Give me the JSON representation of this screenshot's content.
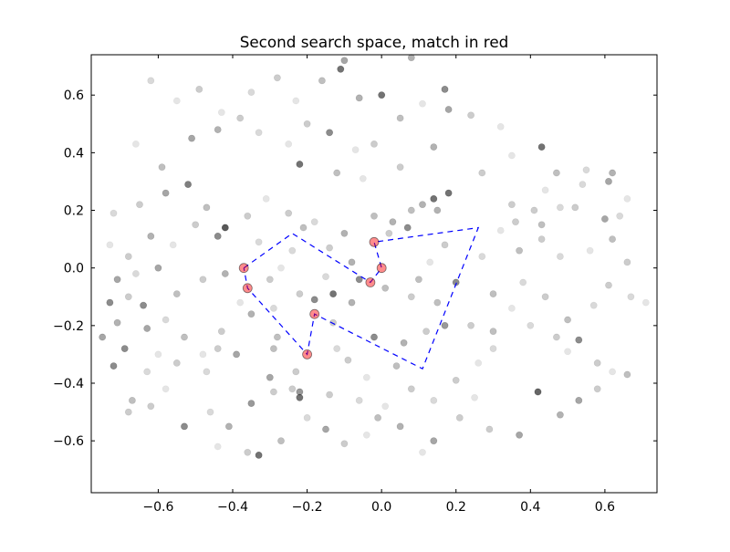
{
  "chart_data": {
    "type": "scatter",
    "title": "Second search space, match in red",
    "xlabel": "",
    "ylabel": "",
    "xlim": [
      -0.78,
      0.74
    ],
    "ylim": [
      -0.78,
      0.74
    ],
    "xticks": [
      -0.6,
      -0.4,
      -0.2,
      0.0,
      0.2,
      0.4,
      0.6
    ],
    "yticks": [
      -0.6,
      -0.4,
      -0.2,
      0.0,
      0.2,
      0.4,
      0.6
    ],
    "xtick_labels": [
      "−0.6",
      "−0.4",
      "−0.2",
      "0.0",
      "0.2",
      "0.4",
      "0.6"
    ],
    "ytick_labels": [
      "−0.6",
      "−0.4",
      "−0.2",
      "0.0",
      "0.2",
      "0.4",
      "0.6"
    ],
    "grid": false,
    "colors": {
      "background_points": "#000000",
      "match_points": "#ff0000",
      "polygon_line": "#0000ff"
    },
    "background_points": [
      [
        -0.62,
        0.65,
        0.15
      ],
      [
        -0.55,
        0.58,
        0.1
      ],
      [
        -0.49,
        0.62,
        0.2
      ],
      [
        -0.43,
        0.54,
        0.1
      ],
      [
        -0.35,
        0.61,
        0.15
      ],
      [
        -0.28,
        0.66,
        0.2
      ],
      [
        -0.23,
        0.58,
        0.1
      ],
      [
        -0.16,
        0.65,
        0.25
      ],
      [
        -0.1,
        0.72,
        0.35
      ],
      [
        -0.06,
        0.59,
        0.3
      ],
      [
        0.0,
        0.6,
        0.55
      ],
      [
        0.05,
        0.52,
        0.25
      ],
      [
        0.11,
        0.57,
        0.1
      ],
      [
        0.17,
        0.62,
        0.45
      ],
      [
        0.24,
        0.53,
        0.2
      ],
      [
        0.32,
        0.49,
        0.1
      ],
      [
        -0.11,
        0.69,
        0.55
      ],
      [
        0.08,
        0.73,
        0.3
      ],
      [
        0.18,
        0.55,
        0.35
      ],
      [
        -0.02,
        0.43,
        0.2
      ],
      [
        -0.66,
        0.43,
        0.1
      ],
      [
        -0.59,
        0.35,
        0.25
      ],
      [
        -0.51,
        0.45,
        0.35
      ],
      [
        -0.44,
        0.48,
        0.3
      ],
      [
        -0.38,
        0.52,
        0.2
      ],
      [
        -0.33,
        0.47,
        0.15
      ],
      [
        -0.25,
        0.43,
        0.1
      ],
      [
        -0.2,
        0.5,
        0.2
      ],
      [
        -0.14,
        0.47,
        0.45
      ],
      [
        -0.07,
        0.41,
        0.1
      ],
      [
        -0.22,
        0.36,
        0.55
      ],
      [
        -0.12,
        0.33,
        0.25
      ],
      [
        -0.05,
        0.31,
        0.1
      ],
      [
        0.05,
        0.35,
        0.2
      ],
      [
        0.14,
        0.42,
        0.3
      ],
      [
        0.27,
        0.33,
        0.2
      ],
      [
        0.35,
        0.39,
        0.1
      ],
      [
        0.43,
        0.42,
        0.55
      ],
      [
        0.47,
        0.33,
        0.25
      ],
      [
        0.54,
        0.29,
        0.15
      ],
      [
        0.62,
        0.33,
        0.3
      ],
      [
        0.66,
        0.24,
        0.1
      ],
      [
        0.6,
        0.17,
        0.35
      ],
      [
        0.52,
        0.21,
        0.2
      ],
      [
        0.44,
        0.27,
        0.1
      ],
      [
        -0.72,
        0.19,
        0.15
      ],
      [
        -0.65,
        0.22,
        0.2
      ],
      [
        -0.58,
        0.26,
        0.35
      ],
      [
        -0.52,
        0.29,
        0.5
      ],
      [
        -0.47,
        0.21,
        0.25
      ],
      [
        -0.42,
        0.14,
        0.65
      ],
      [
        -0.36,
        0.18,
        0.2
      ],
      [
        -0.31,
        0.24,
        0.1
      ],
      [
        -0.25,
        0.19,
        0.2
      ],
      [
        -0.18,
        0.16,
        0.15
      ],
      [
        -0.44,
        0.11,
        0.45
      ],
      [
        -0.5,
        0.15,
        0.2
      ],
      [
        -0.56,
        0.08,
        0.1
      ],
      [
        -0.62,
        0.11,
        0.3
      ],
      [
        -0.68,
        0.04,
        0.2
      ],
      [
        -0.73,
        0.08,
        0.1
      ],
      [
        -0.66,
        -0.02,
        0.15
      ],
      [
        -0.6,
        0.0,
        0.35
      ],
      [
        -0.55,
        -0.09,
        0.25
      ],
      [
        -0.48,
        -0.04,
        0.2
      ],
      [
        -0.42,
        -0.02,
        0.3
      ],
      [
        -0.38,
        -0.12,
        0.1
      ],
      [
        -0.71,
        -0.04,
        0.35
      ],
      [
        -0.73,
        -0.12,
        0.45
      ],
      [
        -0.68,
        -0.1,
        0.2
      ],
      [
        -0.64,
        -0.13,
        0.45
      ],
      [
        -0.71,
        -0.19,
        0.3
      ],
      [
        -0.75,
        -0.24,
        0.35
      ],
      [
        -0.69,
        -0.28,
        0.45
      ],
      [
        -0.63,
        -0.21,
        0.35
      ],
      [
        -0.58,
        -0.18,
        0.15
      ],
      [
        -0.53,
        -0.24,
        0.25
      ],
      [
        -0.48,
        -0.3,
        0.1
      ],
      [
        -0.43,
        -0.22,
        0.2
      ],
      [
        -0.39,
        -0.3,
        0.35
      ],
      [
        -0.72,
        -0.34,
        0.45
      ],
      [
        -0.67,
        -0.46,
        0.25
      ],
      [
        -0.62,
        -0.48,
        0.2
      ],
      [
        -0.68,
        -0.5,
        0.2
      ],
      [
        -0.58,
        -0.42,
        0.1
      ],
      [
        -0.53,
        -0.55,
        0.45
      ],
      [
        -0.46,
        -0.5,
        0.15
      ],
      [
        -0.41,
        -0.55,
        0.3
      ],
      [
        -0.35,
        -0.47,
        0.4
      ],
      [
        -0.29,
        -0.43,
        0.2
      ],
      [
        -0.44,
        -0.62,
        0.1
      ],
      [
        -0.36,
        -0.64,
        0.2
      ],
      [
        -0.33,
        -0.65,
        0.55
      ],
      [
        -0.27,
        -0.6,
        0.25
      ],
      [
        -0.2,
        -0.52,
        0.15
      ],
      [
        -0.15,
        -0.56,
        0.35
      ],
      [
        -0.1,
        -0.61,
        0.2
      ],
      [
        -0.04,
        -0.58,
        0.1
      ],
      [
        -0.01,
        -0.52,
        0.25
      ],
      [
        0.05,
        -0.55,
        0.3
      ],
      [
        0.11,
        -0.64,
        0.1
      ],
      [
        0.14,
        -0.6,
        0.35
      ],
      [
        0.21,
        -0.52,
        0.2
      ],
      [
        0.25,
        -0.45,
        0.1
      ],
      [
        0.29,
        -0.56,
        0.2
      ],
      [
        0.37,
        -0.58,
        0.35
      ],
      [
        0.42,
        -0.43,
        0.6
      ],
      [
        0.48,
        -0.51,
        0.3
      ],
      [
        0.53,
        -0.46,
        0.35
      ],
      [
        0.58,
        -0.42,
        0.2
      ],
      [
        0.62,
        -0.36,
        0.1
      ],
      [
        0.66,
        -0.37,
        0.25
      ],
      [
        0.58,
        -0.33,
        0.2
      ],
      [
        0.5,
        -0.29,
        0.1
      ],
      [
        0.47,
        -0.24,
        0.2
      ],
      [
        0.4,
        -0.2,
        0.15
      ],
      [
        0.35,
        -0.14,
        0.1
      ],
      [
        0.3,
        -0.09,
        0.25
      ],
      [
        0.38,
        -0.05,
        0.15
      ],
      [
        0.44,
        -0.1,
        0.2
      ],
      [
        0.5,
        -0.18,
        0.25
      ],
      [
        0.53,
        -0.25,
        0.45
      ],
      [
        0.57,
        -0.13,
        0.15
      ],
      [
        0.61,
        -0.06,
        0.2
      ],
      [
        0.67,
        -0.1,
        0.15
      ],
      [
        0.71,
        -0.12,
        0.1
      ],
      [
        0.66,
        0.02,
        0.2
      ],
      [
        0.62,
        0.1,
        0.25
      ],
      [
        0.56,
        0.06,
        0.1
      ],
      [
        0.48,
        0.04,
        0.15
      ],
      [
        0.43,
        0.1,
        0.2
      ],
      [
        0.37,
        0.06,
        0.25
      ],
      [
        0.32,
        0.13,
        0.1
      ],
      [
        0.36,
        0.16,
        0.2
      ],
      [
        0.27,
        0.04,
        0.15
      ],
      [
        0.2,
        -0.05,
        0.45
      ],
      [
        0.15,
        -0.12,
        0.25
      ],
      [
        0.17,
        -0.2,
        0.4
      ],
      [
        0.12,
        -0.22,
        0.2
      ],
      [
        0.06,
        -0.26,
        0.3
      ],
      [
        0.04,
        -0.34,
        0.25
      ],
      [
        -0.04,
        -0.38,
        0.1
      ],
      [
        -0.09,
        -0.32,
        0.2
      ],
      [
        -0.02,
        -0.24,
        0.45
      ],
      [
        -0.13,
        -0.19,
        0.2
      ],
      [
        -0.18,
        -0.11,
        0.45
      ],
      [
        -0.13,
        -0.09,
        0.55
      ],
      [
        -0.08,
        -0.12,
        0.3
      ],
      [
        -0.12,
        -0.28,
        0.15
      ],
      [
        -0.23,
        -0.36,
        0.2
      ],
      [
        -0.28,
        -0.24,
        0.25
      ],
      [
        -0.35,
        -0.16,
        0.3
      ],
      [
        -0.29,
        -0.14,
        0.15
      ],
      [
        -0.22,
        -0.09,
        0.2
      ],
      [
        -0.15,
        -0.03,
        0.15
      ],
      [
        -0.08,
        0.02,
        0.3
      ],
      [
        -0.06,
        -0.04,
        0.45
      ],
      [
        0.01,
        -0.07,
        0.25
      ],
      [
        0.08,
        -0.1,
        0.2
      ],
      [
        0.1,
        -0.04,
        0.25
      ],
      [
        0.13,
        0.02,
        0.1
      ],
      [
        0.17,
        0.08,
        0.2
      ],
      [
        0.07,
        0.14,
        0.45
      ],
      [
        0.02,
        0.12,
        0.2
      ],
      [
        -0.02,
        0.18,
        0.25
      ],
      [
        -0.1,
        0.12,
        0.3
      ],
      [
        -0.14,
        0.07,
        0.2
      ],
      [
        -0.21,
        0.14,
        0.25
      ],
      [
        -0.24,
        0.06,
        0.15
      ],
      [
        -0.27,
        0.0,
        0.1
      ],
      [
        -0.3,
        -0.04,
        0.2
      ],
      [
        -0.33,
        0.09,
        0.15
      ],
      [
        -0.44,
        -0.28,
        0.2
      ],
      [
        -0.47,
        -0.36,
        0.15
      ],
      [
        -0.55,
        -0.33,
        0.2
      ],
      [
        -0.6,
        -0.3,
        0.1
      ],
      [
        -0.63,
        -0.36,
        0.15
      ],
      [
        -0.3,
        -0.38,
        0.35
      ],
      [
        -0.29,
        -0.28,
        0.25
      ],
      [
        -0.24,
        -0.42,
        0.2
      ],
      [
        -0.22,
        -0.45,
        0.55
      ],
      [
        -0.22,
        -0.43,
        0.4
      ],
      [
        -0.14,
        -0.44,
        0.2
      ],
      [
        -0.06,
        -0.46,
        0.15
      ],
      [
        0.01,
        -0.48,
        0.1
      ],
      [
        0.08,
        -0.42,
        0.2
      ],
      [
        0.14,
        -0.46,
        0.15
      ],
      [
        0.2,
        -0.39,
        0.2
      ],
      [
        0.26,
        -0.33,
        0.1
      ],
      [
        0.3,
        -0.28,
        0.15
      ],
      [
        0.3,
        -0.22,
        0.25
      ],
      [
        0.24,
        -0.2,
        0.2
      ],
      [
        0.11,
        0.22,
        0.3
      ],
      [
        0.14,
        0.24,
        0.55
      ],
      [
        0.18,
        0.26,
        0.55
      ],
      [
        0.15,
        0.2,
        0.3
      ],
      [
        0.08,
        0.2,
        0.25
      ],
      [
        0.03,
        0.16,
        0.3
      ],
      [
        0.35,
        0.22,
        0.2
      ],
      [
        0.43,
        0.15,
        0.25
      ],
      [
        0.48,
        0.21,
        0.15
      ],
      [
        0.61,
        0.3,
        0.35
      ],
      [
        0.55,
        0.34,
        0.15
      ],
      [
        0.64,
        0.18,
        0.15
      ],
      [
        0.41,
        0.2,
        0.2
      ]
    ],
    "match_points": [
      [
        -0.37,
        0.0
      ],
      [
        -0.36,
        -0.07
      ],
      [
        -0.2,
        -0.3
      ],
      [
        -0.18,
        -0.16
      ],
      [
        0.0,
        0.0
      ],
      [
        -0.03,
        -0.05
      ],
      [
        -0.02,
        0.09
      ]
    ],
    "polygon": [
      [
        -0.37,
        0.0
      ],
      [
        -0.24,
        0.12
      ],
      [
        -0.03,
        -0.05
      ],
      [
        0.0,
        0.0
      ],
      [
        -0.02,
        0.09
      ],
      [
        0.26,
        0.14
      ],
      [
        0.11,
        -0.35
      ],
      [
        -0.18,
        -0.16
      ],
      [
        -0.2,
        -0.3
      ],
      [
        -0.36,
        -0.07
      ],
      [
        -0.37,
        0.0
      ]
    ]
  }
}
